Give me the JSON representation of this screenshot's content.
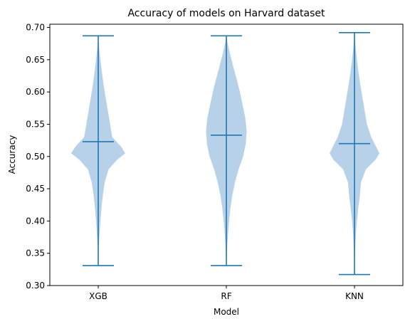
{
  "chart_data": {
    "type": "violin",
    "title": "Accuracy of models on Harvard dataset",
    "xlabel": "Model",
    "ylabel": "Accuracy",
    "ylim": [
      0.3,
      0.705
    ],
    "yticks": [
      "0.30",
      "0.35",
      "0.40",
      "0.45",
      "0.50",
      "0.55",
      "0.60",
      "0.65",
      "0.70"
    ],
    "categories": [
      "XGB",
      "RF",
      "KNN"
    ],
    "colors": {
      "body": "#b6d1e8",
      "line": "#1f77b4"
    },
    "series": [
      {
        "category": "XGB",
        "min": 0.331,
        "max": 0.687,
        "mean": 0.523,
        "density": [
          [
            0.331,
            0.0
          ],
          [
            0.36,
            0.02
          ],
          [
            0.38,
            0.05
          ],
          [
            0.4,
            0.08
          ],
          [
            0.42,
            0.12
          ],
          [
            0.44,
            0.17
          ],
          [
            0.46,
            0.24
          ],
          [
            0.48,
            0.38
          ],
          [
            0.495,
            0.7
          ],
          [
            0.505,
            1.0
          ],
          [
            0.515,
            0.85
          ],
          [
            0.53,
            0.52
          ],
          [
            0.55,
            0.44
          ],
          [
            0.57,
            0.36
          ],
          [
            0.59,
            0.28
          ],
          [
            0.61,
            0.2
          ],
          [
            0.63,
            0.14
          ],
          [
            0.65,
            0.08
          ],
          [
            0.67,
            0.03
          ],
          [
            0.687,
            0.0
          ]
        ]
      },
      {
        "category": "RF",
        "min": 0.331,
        "max": 0.687,
        "mean": 0.533,
        "density": [
          [
            0.331,
            0.0
          ],
          [
            0.36,
            0.03
          ],
          [
            0.38,
            0.06
          ],
          [
            0.4,
            0.1
          ],
          [
            0.42,
            0.15
          ],
          [
            0.44,
            0.22
          ],
          [
            0.46,
            0.32
          ],
          [
            0.48,
            0.45
          ],
          [
            0.5,
            0.62
          ],
          [
            0.52,
            0.72
          ],
          [
            0.54,
            0.75
          ],
          [
            0.56,
            0.7
          ],
          [
            0.58,
            0.6
          ],
          [
            0.6,
            0.5
          ],
          [
            0.62,
            0.38
          ],
          [
            0.64,
            0.25
          ],
          [
            0.66,
            0.13
          ],
          [
            0.675,
            0.05
          ],
          [
            0.687,
            0.0
          ]
        ]
      },
      {
        "category": "KNN",
        "min": 0.317,
        "max": 0.692,
        "mean": 0.52,
        "density": [
          [
            0.317,
            0.0
          ],
          [
            0.35,
            0.02
          ],
          [
            0.38,
            0.05
          ],
          [
            0.4,
            0.09
          ],
          [
            0.42,
            0.14
          ],
          [
            0.44,
            0.2
          ],
          [
            0.46,
            0.24
          ],
          [
            0.48,
            0.42
          ],
          [
            0.495,
            0.78
          ],
          [
            0.505,
            0.92
          ],
          [
            0.515,
            0.8
          ],
          [
            0.53,
            0.62
          ],
          [
            0.55,
            0.46
          ],
          [
            0.57,
            0.38
          ],
          [
            0.59,
            0.3
          ],
          [
            0.61,
            0.22
          ],
          [
            0.63,
            0.15
          ],
          [
            0.65,
            0.09
          ],
          [
            0.67,
            0.04
          ],
          [
            0.692,
            0.0
          ]
        ]
      }
    ]
  }
}
